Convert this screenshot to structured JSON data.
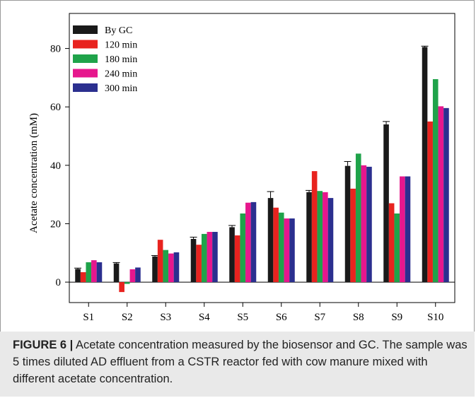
{
  "chart_data": {
    "type": "bar",
    "categories": [
      "S1",
      "S2",
      "S3",
      "S4",
      "S5",
      "S6",
      "S7",
      "S8",
      "S9",
      "S10"
    ],
    "series": [
      {
        "name": "By GC",
        "color": "#1a1a1a",
        "values": [
          4.5,
          6.4,
          8.8,
          14.8,
          18.8,
          28.8,
          30.8,
          39.8,
          54.0,
          80.5
        ],
        "errors": [
          0.3,
          0.3,
          0.3,
          0.6,
          0.6,
          2.2,
          0.6,
          1.5,
          1.0,
          0.3
        ]
      },
      {
        "name": "120 min",
        "color": "#e8231f",
        "values": [
          3.4,
          -3.4,
          14.5,
          12.8,
          16.0,
          25.5,
          38.0,
          32.0,
          27.0,
          55.0
        ]
      },
      {
        "name": "180 min",
        "color": "#1fa34a",
        "values": [
          6.8,
          -0.6,
          11.0,
          16.5,
          23.5,
          23.8,
          31.2,
          44.0,
          23.5,
          69.5
        ]
      },
      {
        "name": "240 min",
        "color": "#e6178d",
        "values": [
          7.5,
          4.4,
          9.8,
          17.2,
          27.2,
          21.8,
          30.8,
          40.0,
          36.2,
          60.2
        ]
      },
      {
        "name": "300 min",
        "color": "#2b2f8f",
        "values": [
          6.8,
          5.0,
          10.2,
          17.2,
          27.4,
          21.8,
          28.8,
          39.5,
          36.2,
          59.6
        ]
      }
    ],
    "ylabel": "Acetate concentration (mM)",
    "ylim": [
      -7,
      92
    ],
    "yticks": [
      0,
      20,
      40,
      60,
      80
    ],
    "legend_position": "top-left"
  },
  "caption": {
    "label": "FIGURE 6 |",
    "text": " Acetate concentration measured by the biosensor and GC. The sample was 5 times diluted AD effluent from a CSTR reactor fed with cow manure mixed with different acetate concentration."
  }
}
